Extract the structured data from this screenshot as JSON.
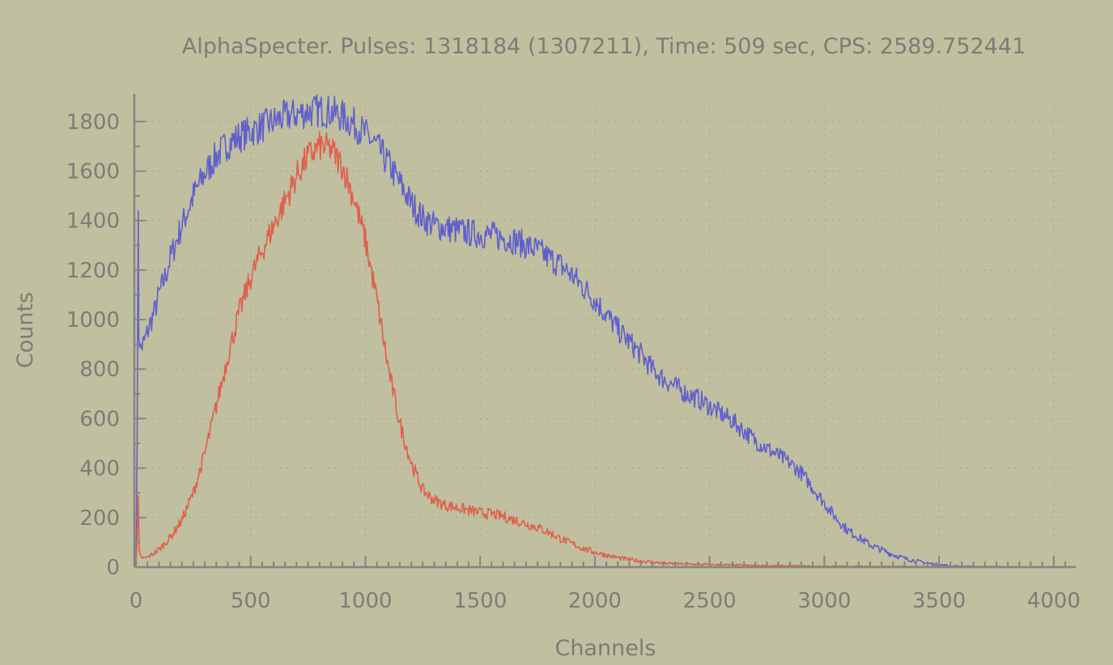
{
  "chart_data": {
    "type": "line",
    "title": "AlphaSpecter. Pulses: 1318184 (1307211), Time: 509 sec, CPS: 2589.752441",
    "xlabel": "Channels",
    "ylabel": "Counts",
    "xlim": [
      0,
      4096
    ],
    "ylim": [
      0,
      1850
    ],
    "x_ticks": [
      0,
      500,
      1000,
      1500,
      2000,
      2500,
      3000,
      3500,
      4000
    ],
    "y_ticks": [
      0,
      200,
      400,
      600,
      800,
      1000,
      1200,
      1400,
      1600,
      1800
    ],
    "grid": true,
    "legend": "none",
    "series": [
      {
        "color": "#6060cc",
        "x": [
          0,
          5,
          10,
          12,
          20,
          30,
          40,
          60,
          80,
          100,
          130,
          150,
          200,
          250,
          300,
          350,
          400,
          450,
          500,
          550,
          600,
          650,
          700,
          750,
          800,
          850,
          900,
          950,
          1000,
          1050,
          1100,
          1150,
          1200,
          1250,
          1300,
          1350,
          1400,
          1450,
          1500,
          1550,
          1600,
          1650,
          1700,
          1750,
          1800,
          1850,
          1900,
          1950,
          2000,
          2050,
          2100,
          2150,
          2200,
          2250,
          2300,
          2350,
          2400,
          2450,
          2500,
          2550,
          2600,
          2650,
          2700,
          2750,
          2800,
          2850,
          2900,
          2950,
          3000,
          3050,
          3100,
          3150,
          3200,
          3250,
          3300,
          3350,
          3400,
          3450,
          3500,
          3550,
          3600,
          3650,
          3700,
          3750,
          3800,
          3850,
          3900,
          3950,
          4000,
          4050,
          4096
        ],
        "y": [
          0,
          520,
          1390,
          950,
          880,
          900,
          920,
          980,
          1030,
          1100,
          1180,
          1250,
          1380,
          1500,
          1590,
          1660,
          1710,
          1740,
          1760,
          1780,
          1800,
          1820,
          1830,
          1840,
          1845,
          1840,
          1820,
          1790,
          1750,
          1700,
          1630,
          1550,
          1470,
          1410,
          1380,
          1370,
          1360,
          1350,
          1345,
          1340,
          1330,
          1320,
          1300,
          1280,
          1250,
          1220,
          1180,
          1130,
          1080,
          1020,
          960,
          910,
          860,
          800,
          760,
          730,
          700,
          680,
          650,
          620,
          590,
          550,
          510,
          480,
          450,
          420,
          380,
          320,
          260,
          200,
          150,
          120,
          90,
          70,
          50,
          35,
          25,
          15,
          10,
          5,
          3,
          2,
          1,
          1,
          0,
          0,
          0,
          0,
          0,
          0,
          0
        ]
      },
      {
        "color": "#e0604c",
        "x": [
          0,
          5,
          10,
          14,
          20,
          40,
          60,
          100,
          150,
          200,
          250,
          300,
          350,
          400,
          450,
          500,
          550,
          600,
          650,
          700,
          750,
          800,
          850,
          900,
          950,
          1000,
          1050,
          1100,
          1150,
          1200,
          1250,
          1300,
          1350,
          1400,
          1450,
          1500,
          1550,
          1600,
          1650,
          1700,
          1750,
          1800,
          1850,
          1900,
          1950,
          2000,
          2050,
          2100,
          2150,
          2200,
          2250,
          2300,
          2400,
          2500,
          2600,
          2700,
          2800,
          2900,
          3000,
          3200,
          3400,
          3600,
          3800,
          4000,
          4096
        ],
        "y": [
          0,
          100,
          280,
          60,
          40,
          35,
          45,
          70,
          120,
          190,
          300,
          460,
          650,
          850,
          1030,
          1170,
          1280,
          1380,
          1480,
          1580,
          1660,
          1700,
          1690,
          1620,
          1490,
          1320,
          1080,
          800,
          580,
          420,
          310,
          270,
          250,
          240,
          230,
          220,
          215,
          205,
          190,
          175,
          160,
          140,
          115,
          95,
          75,
          60,
          48,
          38,
          30,
          25,
          20,
          15,
          12,
          10,
          8,
          6,
          5,
          4,
          3,
          3,
          2,
          2,
          1,
          1,
          1
        ]
      }
    ]
  }
}
